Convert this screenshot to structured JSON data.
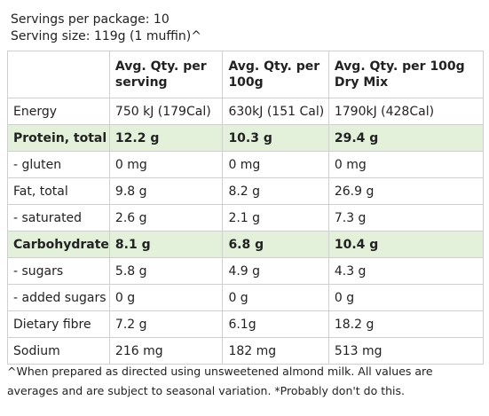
{
  "header": {
    "servings": "Servings per package: 10",
    "serving_size": "Serving size: 119g (1 muffin)^"
  },
  "table": {
    "columns": [
      "",
      "Avg. Qty. per serving",
      "Avg. Qty. per 100g",
      "Avg. Qty. per 100g Dry Mix"
    ],
    "rows": [
      [
        "Energy",
        "750 kJ (179Cal)",
        "630kJ (151 Cal)",
        "1790kJ (428Cal)"
      ],
      [
        "Protein, total",
        "12.2 g",
        "10.3 g",
        "29.4 g"
      ],
      [
        "- gluten",
        "0 mg",
        "0 mg",
        "0 mg"
      ],
      [
        "Fat, total",
        "9.8 g",
        "8.2 g",
        "26.9 g"
      ],
      [
        "- saturated",
        "2.6 g",
        "2.1 g",
        "7.3 g"
      ],
      [
        "Carbohydrate",
        "8.1 g",
        "6.8 g",
        "10.4 g"
      ],
      [
        "- sugars",
        "5.8 g",
        "4.9 g",
        "4.3 g"
      ],
      [
        "- added sugars",
        "0 g",
        "0 g",
        "0 g"
      ],
      [
        "Dietary fibre",
        "7.2 g",
        "6.1g",
        "18.2 g"
      ],
      [
        "Sodium",
        "216 mg",
        "182 mg",
        "513 mg"
      ]
    ]
  },
  "footnote": "^When prepared as directed using unsweetened almond milk. All values are averages and are subject to seasonal variation. *Probably don't do this."
}
